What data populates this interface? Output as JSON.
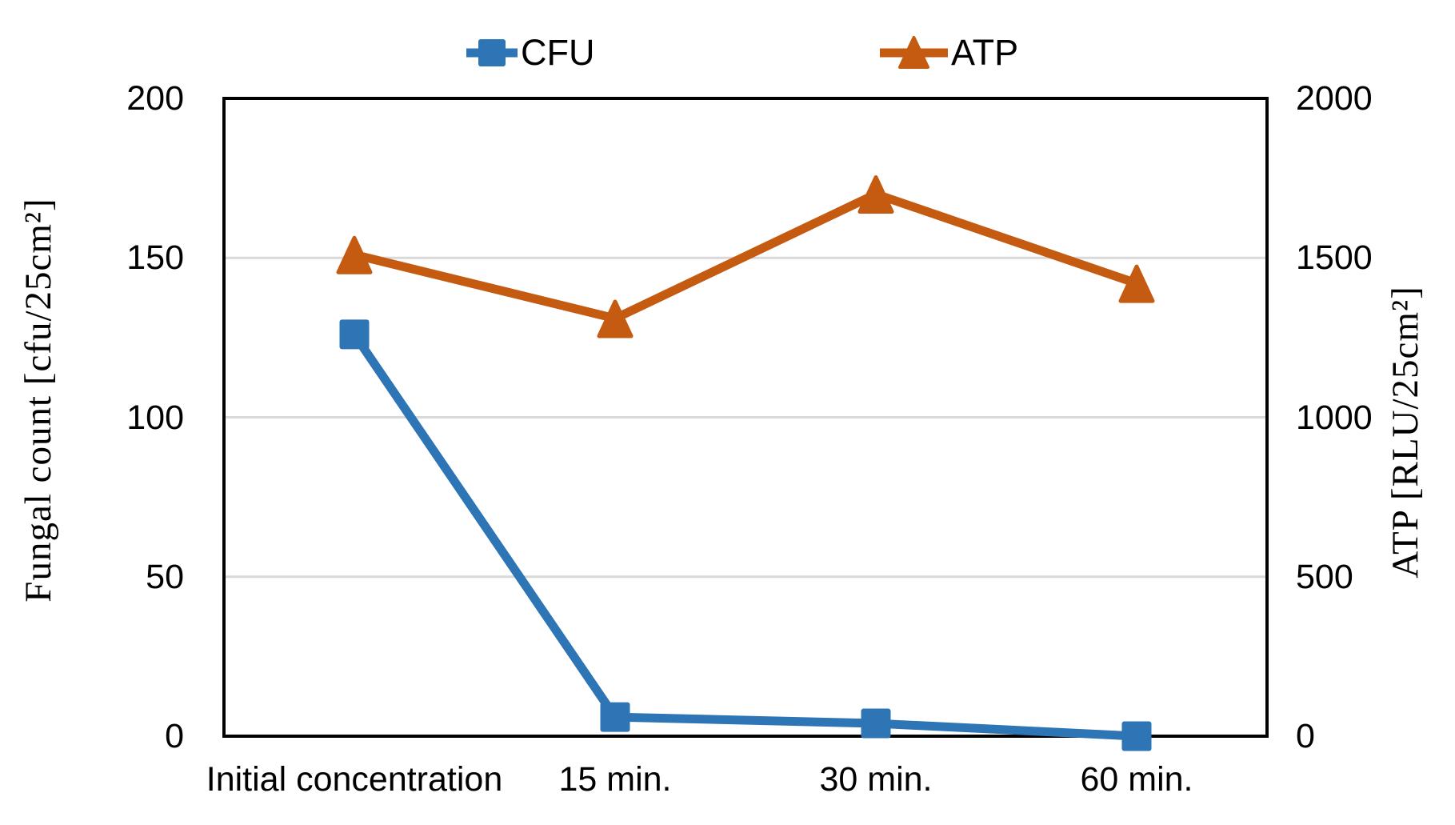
{
  "legend": {
    "items": [
      {
        "label": "CFU"
      },
      {
        "label": "ATP"
      }
    ]
  },
  "axes": {
    "left": {
      "title": "Fungal count [cfu/25cm²]",
      "ticks": [
        "200",
        "150",
        "100",
        "50",
        "0"
      ]
    },
    "right": {
      "title": "ATP [RLU/25cm²]",
      "ticks": [
        "2000",
        "1500",
        "1000",
        "500",
        "0"
      ]
    },
    "x": {
      "labels": [
        "Initial concentration",
        "15 min.",
        "30 min.",
        "60 min."
      ]
    }
  },
  "colors": {
    "cfu_series": "#2E75B6",
    "atp_series": "#C55A11",
    "gridline": "#D9D9D9",
    "axis_line": "#000000",
    "text": "#000000"
  },
  "chart_data": {
    "type": "line",
    "categories": [
      "Initial concentration",
      "15 min.",
      "30 min.",
      "60 min."
    ],
    "series": [
      {
        "name": "CFU",
        "axis": "left",
        "marker": "square",
        "color": "#2E75B6",
        "values": [
          126,
          6,
          4,
          0
        ]
      },
      {
        "name": "ATP",
        "axis": "right",
        "marker": "triangle",
        "color": "#C55A11",
        "values": [
          1510,
          1310,
          1700,
          1420
        ]
      }
    ],
    "left_axis": {
      "label": "Fungal count [cfu/25cm²]",
      "lim": [
        0,
        200
      ],
      "tick_step": 50
    },
    "right_axis": {
      "label": "ATP [RLU/25cm²]",
      "lim": [
        0,
        2000
      ],
      "tick_step": 500
    },
    "grid": true,
    "gridlines_at_left_values": [
      50,
      100,
      150
    ],
    "legend_position": "top",
    "title": ""
  }
}
